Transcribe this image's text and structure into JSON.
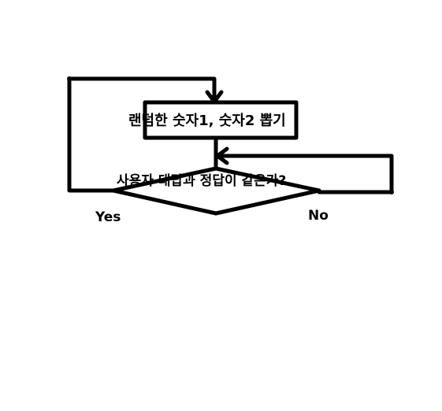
{
  "process": {
    "text": "랜덤한 숫자1, 숫자2 뽑기"
  },
  "decision": {
    "text": "사용자 대답과 정답이 같은가?"
  },
  "branches": {
    "yes": "Yes",
    "no": "No"
  },
  "colors": {
    "stroke": "#000000",
    "background": "#ffffff"
  }
}
